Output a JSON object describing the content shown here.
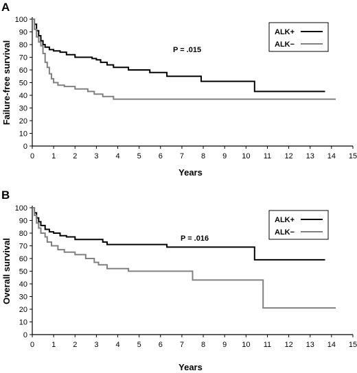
{
  "chart_data": [
    {
      "type": "line",
      "panel_label": "A",
      "xlabel": "Years",
      "ylabel": "Failure-free survival",
      "xlim": [
        0,
        15
      ],
      "ylim": [
        0,
        100
      ],
      "x_ticks": [
        "0",
        "1",
        "2",
        "3",
        "4",
        "5",
        "6",
        "7",
        "8",
        "9",
        "10",
        "11",
        "12",
        "13",
        "14",
        "15"
      ],
      "y_ticks": [
        "0",
        "10",
        "20",
        "30",
        "40",
        "50",
        "60",
        "70",
        "80",
        "90",
        "100"
      ],
      "annotation": "P = .015",
      "legend_position": "top-right",
      "series": [
        {
          "name": "ALK+",
          "color": "#000000",
          "points": [
            [
              0,
              100
            ],
            [
              0.1,
              96
            ],
            [
              0.2,
              91
            ],
            [
              0.3,
              87
            ],
            [
              0.4,
              83
            ],
            [
              0.5,
              80
            ],
            [
              0.6,
              78
            ],
            [
              0.8,
              76
            ],
            [
              1.0,
              75
            ],
            [
              1.3,
              74
            ],
            [
              1.6,
              72
            ],
            [
              2.0,
              70
            ],
            [
              2.8,
              69
            ],
            [
              3.0,
              68
            ],
            [
              3.2,
              66
            ],
            [
              3.5,
              64
            ],
            [
              3.8,
              62
            ],
            [
              4.5,
              60
            ],
            [
              5.5,
              58
            ],
            [
              6.3,
              55
            ],
            [
              7.9,
              51
            ],
            [
              10.4,
              43
            ],
            [
              13.7,
              43
            ]
          ]
        },
        {
          "name": "ALK−",
          "color": "#808080",
          "points": [
            [
              0,
              100
            ],
            [
              0.1,
              92
            ],
            [
              0.2,
              86
            ],
            [
              0.3,
              82
            ],
            [
              0.4,
              79
            ],
            [
              0.5,
              73
            ],
            [
              0.6,
              66
            ],
            [
              0.7,
              62
            ],
            [
              0.8,
              57
            ],
            [
              0.9,
              53
            ],
            [
              1.0,
              50
            ],
            [
              1.2,
              48
            ],
            [
              1.5,
              47
            ],
            [
              2.0,
              45
            ],
            [
              2.6,
              43
            ],
            [
              2.9,
              41
            ],
            [
              3.3,
              39
            ],
            [
              3.8,
              37
            ],
            [
              14.2,
              37
            ]
          ]
        }
      ]
    },
    {
      "type": "line",
      "panel_label": "B",
      "xlabel": "Years",
      "ylabel": "Overall survival",
      "xlim": [
        0,
        15
      ],
      "ylim": [
        0,
        100
      ],
      "x_ticks": [
        "0",
        "1",
        "2",
        "3",
        "4",
        "5",
        "6",
        "7",
        "8",
        "9",
        "10",
        "11",
        "12",
        "13",
        "14",
        "15"
      ],
      "y_ticks": [
        "0",
        "10",
        "20",
        "30",
        "40",
        "50",
        "60",
        "70",
        "80",
        "90",
        "100"
      ],
      "annotation": "P = .016",
      "legend_position": "top-right",
      "series": [
        {
          "name": "ALK+",
          "color": "#000000",
          "points": [
            [
              0,
              100
            ],
            [
              0.1,
              96
            ],
            [
              0.2,
              92
            ],
            [
              0.3,
              89
            ],
            [
              0.4,
              86
            ],
            [
              0.6,
              83
            ],
            [
              0.8,
              81
            ],
            [
              1.0,
              80
            ],
            [
              1.3,
              78
            ],
            [
              1.6,
              77
            ],
            [
              2.0,
              75
            ],
            [
              3.3,
              73
            ],
            [
              3.5,
              71
            ],
            [
              6.3,
              69
            ],
            [
              10.4,
              59
            ],
            [
              13.7,
              59
            ]
          ]
        },
        {
          "name": "ALK−",
          "color": "#808080",
          "points": [
            [
              0,
              100
            ],
            [
              0.1,
              94
            ],
            [
              0.2,
              88
            ],
            [
              0.3,
              84
            ],
            [
              0.4,
              80
            ],
            [
              0.6,
              77
            ],
            [
              0.7,
              73
            ],
            [
              0.9,
              70
            ],
            [
              1.2,
              67
            ],
            [
              1.5,
              65
            ],
            [
              2.0,
              63
            ],
            [
              2.5,
              60
            ],
            [
              2.9,
              57
            ],
            [
              3.1,
              55
            ],
            [
              3.5,
              52
            ],
            [
              4.5,
              50
            ],
            [
              7.5,
              43
            ],
            [
              10.8,
              21
            ],
            [
              14.2,
              21
            ]
          ]
        }
      ]
    }
  ]
}
